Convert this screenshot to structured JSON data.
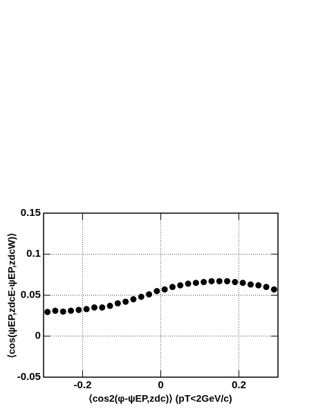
{
  "chart_data": {
    "type": "scatter",
    "x_label": "⟨cos2(φ-ψEP,zdc)⟩ (pT<2GeV/c)",
    "y_label": "⟨cos(ψEP,zdcE-ψEP,zdcW)⟩",
    "xlim": [
      -0.3,
      0.3
    ],
    "ylim": [
      -0.05,
      0.15
    ],
    "xticks": [
      -0.2,
      0,
      0.2
    ],
    "yticks": [
      -0.05,
      0,
      0.05,
      0.1,
      0.15
    ],
    "grid": true,
    "color": "#000000",
    "x": [
      -0.29,
      -0.27,
      -0.25,
      -0.23,
      -0.21,
      -0.19,
      -0.17,
      -0.15,
      -0.13,
      -0.11,
      -0.09,
      -0.07,
      -0.05,
      -0.03,
      -0.01,
      0.01,
      0.03,
      0.05,
      0.07,
      0.09,
      0.11,
      0.13,
      0.15,
      0.17,
      0.19,
      0.21,
      0.23,
      0.25,
      0.27,
      0.29
    ],
    "values": [
      0.0295,
      0.031,
      0.03,
      0.031,
      0.032,
      0.033,
      0.035,
      0.035,
      0.037,
      0.04,
      0.042,
      0.045,
      0.048,
      0.051,
      0.055,
      0.057,
      0.06,
      0.062,
      0.064,
      0.065,
      0.066,
      0.067,
      0.067,
      0.067,
      0.066,
      0.065,
      0.063,
      0.062,
      0.06,
      0.057
    ]
  }
}
